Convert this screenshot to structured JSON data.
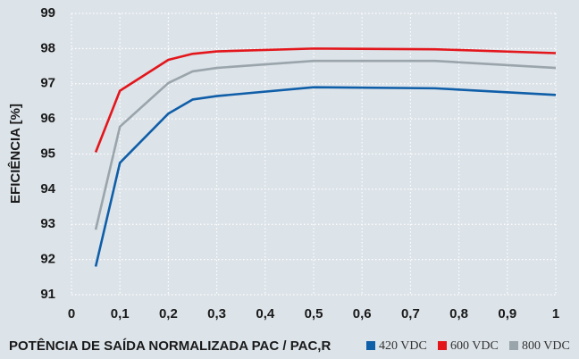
{
  "chart_data": {
    "type": "line",
    "ylabel": "EFICIÊNCIA [%]",
    "xlabel": "POTÊNCIA DE SAÍDA NORMALIZADA PAC / PAC,R",
    "x": [
      0.05,
      0.1,
      0.2,
      0.25,
      0.3,
      0.5,
      0.75,
      1
    ],
    "series": [
      {
        "name": "420 VDC",
        "color": "#0f5ea8",
        "values": [
          91.8,
          94.75,
          96.15,
          96.55,
          96.65,
          96.9,
          96.87,
          96.68
        ]
      },
      {
        "name": "600 VDC",
        "color": "#e3161b",
        "values": [
          95.05,
          96.8,
          97.68,
          97.85,
          97.92,
          98.0,
          97.98,
          97.87
        ]
      },
      {
        "name": "800 VDC",
        "color": "#9aa4ab",
        "values": [
          92.85,
          95.78,
          97.02,
          97.35,
          97.45,
          97.65,
          97.65,
          97.45
        ]
      }
    ],
    "xlim": [
      0,
      1
    ],
    "xticks": [
      0,
      {
        "value": 0.1,
        "label": "0,1"
      },
      {
        "value": 0.2,
        "label": "0,2"
      },
      {
        "value": 0.3,
        "label": "0,3"
      },
      {
        "value": 0.4,
        "label": "0,4"
      },
      {
        "value": 0.5,
        "label": "0,5"
      },
      {
        "value": 0.6,
        "label": "0,6"
      },
      {
        "value": 0.7,
        "label": "0,7"
      },
      {
        "value": 0.8,
        "label": "0,8"
      },
      {
        "value": 0.9,
        "label": "0,9"
      },
      1
    ],
    "ylim": [
      91,
      99
    ],
    "yticks": [
      91,
      92,
      93,
      94,
      95,
      96,
      97,
      98,
      99
    ],
    "grid": true,
    "legend": "bottom-right"
  }
}
